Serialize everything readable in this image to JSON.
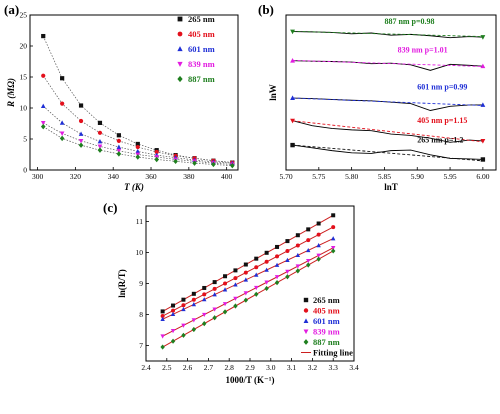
{
  "colors": {
    "c265": "#111111",
    "c405": "#e3101c",
    "c601": "#1f2fd6",
    "c839": "#e21ce0",
    "c887": "#1f7f1f",
    "fit": "#cc1f1f"
  },
  "chart_data": [
    {
      "panel": "(a)",
      "type": "scatter",
      "xlabel": "T (K)",
      "ylabel": "R (MΩ)",
      "xlim": [
        296,
        406
      ],
      "ylim": [
        0,
        25
      ],
      "xticks": [
        300,
        320,
        340,
        360,
        380,
        400
      ],
      "yticks": [
        0,
        5,
        10,
        15,
        20,
        25
      ],
      "legend_position": "top-right",
      "x": [
        303,
        313,
        323,
        333,
        343,
        353,
        363,
        373,
        383,
        393,
        403
      ],
      "series": [
        {
          "name": "265 nm",
          "marker": "square",
          "values": [
            21.6,
            14.8,
            10.4,
            7.6,
            5.6,
            4.2,
            3.2,
            2.4,
            1.9,
            1.5,
            1.2
          ]
        },
        {
          "name": "405 nm",
          "marker": "circle",
          "values": [
            15.2,
            10.7,
            7.9,
            6.0,
            4.7,
            3.7,
            2.9,
            2.3,
            1.9,
            1.5,
            1.2
          ]
        },
        {
          "name": "601 nm",
          "marker": "triangle-up",
          "values": [
            10.3,
            7.6,
            5.8,
            4.6,
            3.7,
            3.0,
            2.4,
            2.0,
            1.6,
            1.3,
            1.1
          ]
        },
        {
          "name": "839 nm",
          "marker": "triangle-down",
          "values": [
            7.6,
            5.9,
            4.7,
            3.8,
            3.1,
            2.5,
            2.1,
            1.7,
            1.4,
            1.1,
            0.9
          ]
        },
        {
          "name": "887 nm",
          "marker": "diamond",
          "values": [
            7.0,
            5.1,
            4.0,
            3.2,
            2.6,
            2.1,
            1.7,
            1.4,
            1.1,
            0.9,
            0.7
          ]
        }
      ]
    },
    {
      "panel": "(b)",
      "type": "line",
      "xlabel": "lnT",
      "ylabel": "lnW",
      "xlim": [
        5.7,
        6.02
      ],
      "ylim": [
        0,
        5.6
      ],
      "xticks": [
        5.7,
        5.75,
        5.8,
        5.85,
        5.9,
        5.95,
        6.0
      ],
      "x": [
        5.71,
        5.74,
        5.77,
        5.8,
        5.83,
        5.86,
        5.89,
        5.92,
        5.95,
        5.98,
        6.0
      ],
      "series": [
        {
          "name": "887 nm",
          "annotation": "887 nm  p=0.98",
          "ann_x": 5.85,
          "ann_y": 5.28,
          "values": [
            5.0,
            4.99,
            4.97,
            4.92,
            4.95,
            4.87,
            4.9,
            4.85,
            4.78,
            4.82,
            4.8
          ],
          "fit": [
            5.01,
            4.82
          ]
        },
        {
          "name": "839 nm",
          "annotation": "839 nm  p=1.01",
          "ann_x": 5.87,
          "ann_y": 4.25,
          "values": [
            3.95,
            3.93,
            3.92,
            3.9,
            3.84,
            3.86,
            3.8,
            3.6,
            3.82,
            3.78,
            3.75
          ],
          "fit": [
            3.96,
            3.74
          ]
        },
        {
          "name": "601 nm",
          "annotation": "601 nm  p=0.99",
          "ann_x": 5.9,
          "ann_y": 2.9,
          "values": [
            2.6,
            2.58,
            2.55,
            2.52,
            2.5,
            2.45,
            2.4,
            2.15,
            2.3,
            2.35,
            2.35
          ],
          "fit": [
            2.6,
            2.33
          ]
        },
        {
          "name": "405 nm",
          "annotation": "405 nm  p=1.15",
          "ann_x": 5.9,
          "ann_y": 1.7,
          "values": [
            1.78,
            1.6,
            1.5,
            1.45,
            1.42,
            1.3,
            1.25,
            1.15,
            1.0,
            1.08,
            1.05
          ],
          "fit": [
            1.78,
            1.02
          ]
        },
        {
          "name": "265 nm",
          "annotation": "265 nm  p=1.2",
          "ann_x": 5.9,
          "ann_y": 1.0,
          "values": [
            0.9,
            0.8,
            0.7,
            0.62,
            0.6,
            0.7,
            0.72,
            0.55,
            0.42,
            0.4,
            0.38
          ],
          "fit": [
            0.9,
            0.33
          ]
        }
      ]
    },
    {
      "panel": "(c)",
      "type": "scatter",
      "xlabel": "1000/T (K⁻¹)",
      "ylabel": "ln(R/T)",
      "xlim": [
        2.4,
        3.4
      ],
      "ylim": [
        6.5,
        11.5
      ],
      "xticks": [
        2.4,
        2.5,
        2.6,
        2.7,
        2.8,
        2.9,
        3.0,
        3.1,
        3.2,
        3.3,
        3.4
      ],
      "yticks": [
        7,
        8,
        9,
        10,
        11
      ],
      "legend_position": "bottom-right",
      "x": [
        2.48,
        2.53,
        2.58,
        2.63,
        2.68,
        2.73,
        2.78,
        2.83,
        2.88,
        2.93,
        2.98,
        3.03,
        3.08,
        3.13,
        3.18,
        3.23,
        3.3
      ],
      "series": [
        {
          "name": "265 nm",
          "marker": "square",
          "start": 8.1,
          "end": 11.2
        },
        {
          "name": "405 nm",
          "marker": "circle",
          "start": 7.95,
          "end": 10.82
        },
        {
          "name": "601 nm",
          "marker": "triangle-up",
          "start": 7.85,
          "end": 10.45
        },
        {
          "name": "839 nm",
          "marker": "triangle-down",
          "start": 7.3,
          "end": 10.15
        },
        {
          "name": "887 nm",
          "marker": "diamond",
          "start": 6.95,
          "end": 10.05
        }
      ],
      "fit_label": "Fitting line"
    }
  ]
}
